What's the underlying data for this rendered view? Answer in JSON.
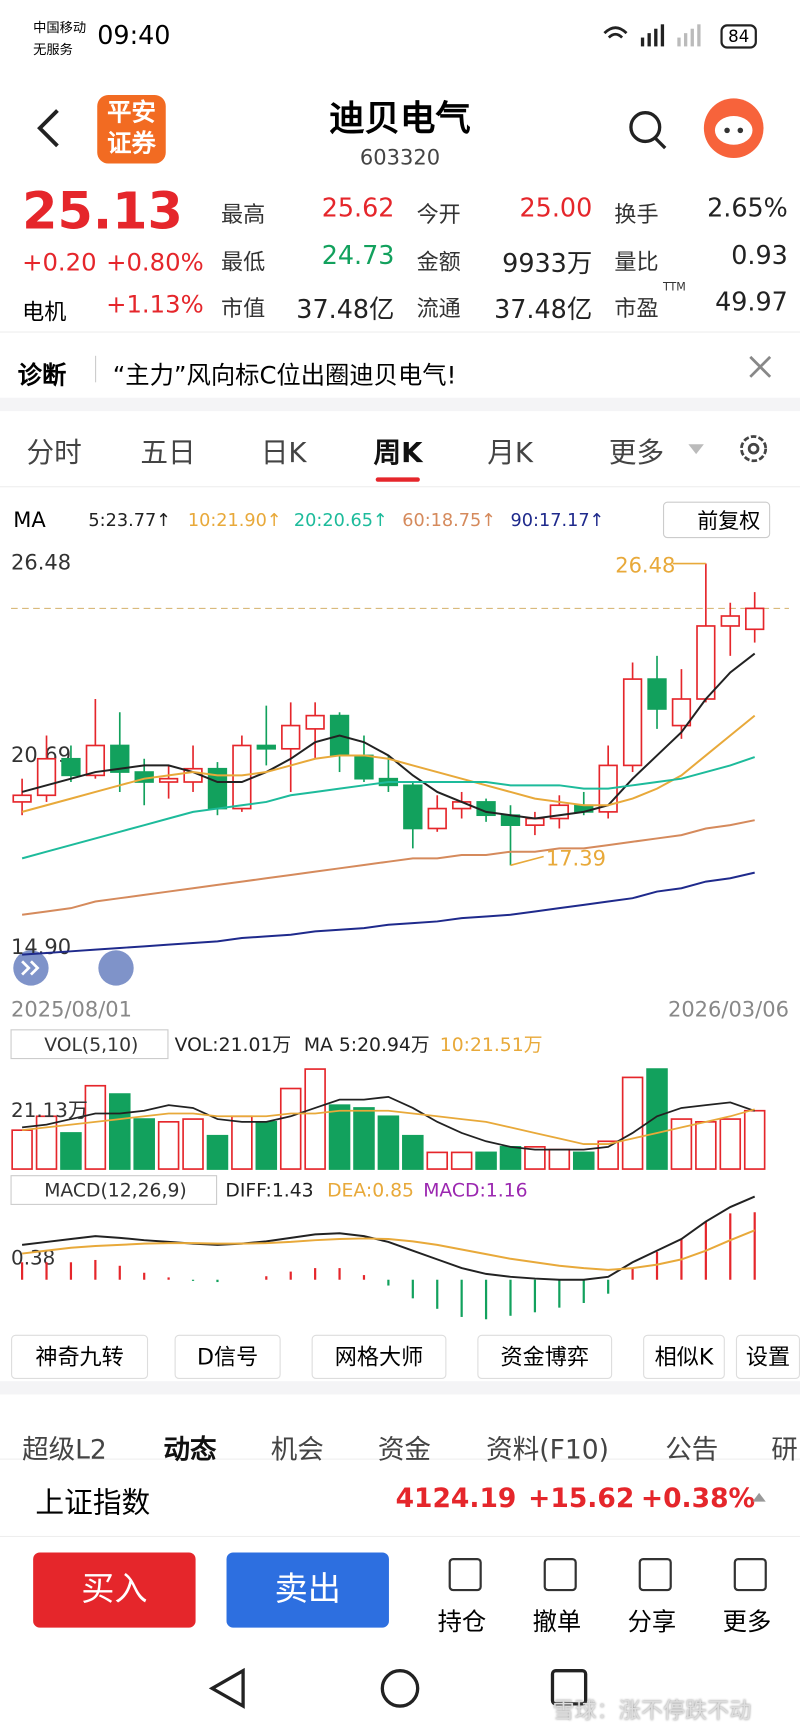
{
  "status": {
    "carrier": "中国移动",
    "service": "无服务",
    "time": "09:40",
    "battery": "84"
  },
  "header": {
    "logo_top": "平安",
    "logo_bottom": "证券",
    "title": "迪贝电气",
    "code": "603320"
  },
  "quote": {
    "price": "25.13",
    "change": "+0.20",
    "change_pct": "+0.80%",
    "sector": "电机",
    "sector_pct": "+1.13%",
    "stats": [
      {
        "label": "最高",
        "value": "25.62"
      },
      {
        "label": "今开",
        "value": "25.00"
      },
      {
        "label": "换手",
        "value": "2.65%"
      },
      {
        "label": "最低",
        "value": "24.73"
      },
      {
        "label": "金额",
        "value": "9933万"
      },
      {
        "label": "量比",
        "value": "0.93"
      },
      {
        "label": "市值",
        "value": "37.48亿"
      },
      {
        "label": "流通",
        "value": "37.48亿"
      },
      {
        "label": "市盈",
        "sup": "TTM",
        "value": "49.97"
      }
    ]
  },
  "diagnosis": {
    "label": "诊断",
    "text": "“主力”风向标C位出圈迪贝电气!"
  },
  "tabs": [
    "分时",
    "五日",
    "日K",
    "周K",
    "月K",
    "更多"
  ],
  "ma_legend": {
    "label": "MA",
    "items": [
      "5:23.77↑",
      "10:21.90↑",
      "20:20.65↑",
      "60:18.75↑",
      "90:17.17↑"
    ],
    "adjust": "前复权"
  },
  "kline": {
    "ylim": [
      13.5,
      26.98
    ],
    "yticks": [
      26.48,
      20.69,
      {
        "value": 14.9,
        "label": "14.90"
      }
    ],
    "max_label": 26.48,
    "min_label": 17.39,
    "date_start": "2025/08/01",
    "date_end": "2026/03/06",
    "open": [
      19.3,
      19.5,
      20.6,
      20.1,
      21.0,
      20.2,
      19.9,
      19.9,
      20.3,
      19.1,
      21.0,
      20.9,
      21.5,
      21.9,
      20.7,
      20.0,
      19.8,
      18.5,
      19.1,
      19.3,
      18.9,
      18.6,
      18.8,
      19.2,
      19.0,
      20.4,
      23.0,
      21.6,
      22.4,
      24.6,
      24.5
    ],
    "high": [
      20.0,
      21.3,
      21.0,
      22.4,
      22.0,
      20.6,
      20.4,
      21.0,
      20.5,
      21.3,
      22.2,
      22.3,
      22.3,
      22.0,
      21.3,
      20.7,
      19.9,
      19.5,
      19.6,
      19.4,
      19.2,
      19.0,
      19.5,
      19.6,
      21.0,
      23.5,
      23.7,
      23.3,
      26.48,
      25.3,
      25.62
    ],
    "low": [
      18.9,
      19.3,
      19.9,
      20.0,
      19.6,
      19.2,
      19.4,
      19.6,
      18.9,
      19.0,
      20.4,
      19.6,
      20.6,
      20.2,
      19.9,
      19.6,
      17.9,
      18.4,
      18.8,
      18.7,
      17.39,
      18.3,
      18.5,
      18.9,
      18.8,
      20.2,
      21.5,
      21.2,
      22.3,
      23.7,
      24.1
    ],
    "close": [
      19.5,
      20.6,
      20.1,
      21.0,
      20.2,
      19.9,
      20.0,
      20.3,
      19.1,
      21.0,
      20.9,
      21.6,
      21.9,
      20.7,
      20.0,
      19.8,
      18.5,
      19.1,
      19.3,
      18.9,
      18.6,
      18.8,
      19.2,
      19.0,
      20.4,
      23.0,
      22.1,
      22.4,
      24.6,
      24.9,
      25.13
    ],
    "series": [
      {
        "name": "MA5",
        "color": "#222222",
        "values": [
          19.6,
          19.8,
          20.0,
          20.2,
          20.3,
          20.4,
          20.4,
          20.2,
          19.9,
          19.9,
          20.2,
          20.6,
          21.1,
          21.3,
          21.1,
          20.7,
          20.1,
          19.6,
          19.3,
          19.0,
          18.9,
          18.8,
          18.9,
          19.0,
          19.2,
          20.0,
          20.7,
          21.4,
          22.4,
          23.2,
          23.77
        ]
      },
      {
        "name": "MA10",
        "color": "#e8a93a",
        "values": [
          19.0,
          19.2,
          19.4,
          19.6,
          19.8,
          20.0,
          20.1,
          20.2,
          20.1,
          20.1,
          20.2,
          20.4,
          20.6,
          20.7,
          20.7,
          20.6,
          20.4,
          20.2,
          20.0,
          19.8,
          19.6,
          19.4,
          19.3,
          19.2,
          19.2,
          19.4,
          19.7,
          20.1,
          20.7,
          21.3,
          21.9
        ]
      },
      {
        "name": "MA20",
        "color": "#1dbb9b",
        "values": [
          17.6,
          17.8,
          18.0,
          18.2,
          18.4,
          18.6,
          18.8,
          19.0,
          19.1,
          19.2,
          19.3,
          19.5,
          19.6,
          19.7,
          19.8,
          19.9,
          19.9,
          19.9,
          19.9,
          19.9,
          19.8,
          19.8,
          19.8,
          19.7,
          19.7,
          19.8,
          19.9,
          20.0,
          20.2,
          20.4,
          20.65
        ]
      },
      {
        "name": "MA60",
        "color": "#d58a5c",
        "values": [
          15.9,
          16.0,
          16.1,
          16.3,
          16.4,
          16.5,
          16.6,
          16.7,
          16.8,
          16.9,
          17.0,
          17.1,
          17.2,
          17.3,
          17.4,
          17.5,
          17.6,
          17.6,
          17.7,
          17.7,
          17.8,
          17.8,
          17.9,
          17.9,
          18.0,
          18.1,
          18.2,
          18.3,
          18.5,
          18.6,
          18.75
        ]
      },
      {
        "name": "MA90",
        "color": "#1f2a8c",
        "values": [
          14.7,
          14.75,
          14.8,
          14.85,
          14.9,
          14.95,
          15.0,
          15.05,
          15.1,
          15.2,
          15.25,
          15.3,
          15.4,
          15.45,
          15.5,
          15.6,
          15.65,
          15.7,
          15.8,
          15.85,
          15.9,
          16.0,
          16.1,
          16.2,
          16.3,
          16.4,
          16.6,
          16.7,
          16.9,
          17.0,
          17.17
        ]
      }
    ]
  },
  "volume": {
    "title": "VOL(5,10)",
    "vol": "VOL:21.01万",
    "ma5": "MA 5:20.94万",
    "ma10": "10:21.51万",
    "ylim": [
      0,
      37
    ],
    "yticks": [
      {
        "value": 21.13,
        "label": "21.13万"
      }
    ],
    "values": [
      14,
      19,
      13,
      30,
      27,
      18,
      17,
      18,
      12,
      19,
      17,
      29,
      36,
      23,
      22,
      19,
      12,
      6,
      6,
      6,
      8,
      8,
      7,
      6,
      10,
      33,
      36,
      18,
      17,
      18,
      21.01
    ],
    "series": [
      {
        "name": "MA5",
        "color": "#222222",
        "values": [
          15,
          16,
          18,
          20,
          20,
          21,
          23,
          22,
          18,
          17,
          17,
          19,
          22,
          25,
          25,
          26,
          22,
          17,
          13,
          10,
          8,
          7,
          7,
          7,
          8,
          13,
          19,
          22,
          23,
          24,
          20.94
        ]
      },
      {
        "name": "MA10",
        "color": "#e8a93a",
        "values": [
          14,
          15,
          16,
          17,
          18,
          19,
          20,
          20,
          19,
          19,
          19,
          20,
          20,
          21,
          21,
          21,
          20,
          19,
          18,
          17,
          15,
          13,
          11,
          9,
          9,
          11,
          13,
          15,
          17,
          19,
          21.51
        ]
      }
    ]
  },
  "macd": {
    "title": "MACD(12,26,9)",
    "diff_label": "DIFF:1.43",
    "dea_label": "DEA:0.85",
    "macd_label": "MACD:1.16",
    "ylim": [
      -0.7,
      1.58
    ],
    "yticks": [
      0.38
    ],
    "diff": [
      0.6,
      0.65,
      0.7,
      0.75,
      0.72,
      0.68,
      0.65,
      0.62,
      0.6,
      0.62,
      0.66,
      0.72,
      0.78,
      0.8,
      0.75,
      0.65,
      0.5,
      0.35,
      0.2,
      0.1,
      0.05,
      0.02,
      0.0,
      0.0,
      0.05,
      0.3,
      0.5,
      0.7,
      1.0,
      1.25,
      1.43
    ],
    "dea": [
      0.45,
      0.5,
      0.55,
      0.58,
      0.6,
      0.62,
      0.63,
      0.63,
      0.62,
      0.62,
      0.63,
      0.65,
      0.68,
      0.7,
      0.71,
      0.7,
      0.66,
      0.6,
      0.52,
      0.44,
      0.36,
      0.3,
      0.24,
      0.2,
      0.17,
      0.2,
      0.26,
      0.35,
      0.5,
      0.68,
      0.85
    ],
    "hist": [
      0.3,
      0.3,
      0.3,
      0.34,
      0.24,
      0.12,
      0.04,
      -0.02,
      -0.04,
      0.0,
      0.06,
      0.14,
      0.2,
      0.2,
      0.08,
      -0.1,
      -0.32,
      -0.5,
      -0.64,
      -0.68,
      -0.62,
      -0.56,
      -0.48,
      -0.4,
      -0.24,
      0.2,
      0.48,
      0.7,
      1.0,
      1.14,
      1.16
    ]
  },
  "tools": [
    "神奇九转",
    "D信号",
    "网格大师",
    "资金博弈",
    "相似K",
    "设置"
  ],
  "bottom_tabs": [
    "超级L2",
    "动态",
    "机会",
    "资金",
    "资料(F10)",
    "公告",
    "研"
  ],
  "index": {
    "name": "上证指数",
    "value": "4124.19",
    "change": "+15.62",
    "pct": "+0.38%"
  },
  "actions": {
    "buy": "买入",
    "sell": "卖出",
    "items": [
      "持仓",
      "撤单",
      "分享",
      "更多"
    ]
  },
  "watermark": "雪球：涨不停跌不动"
}
